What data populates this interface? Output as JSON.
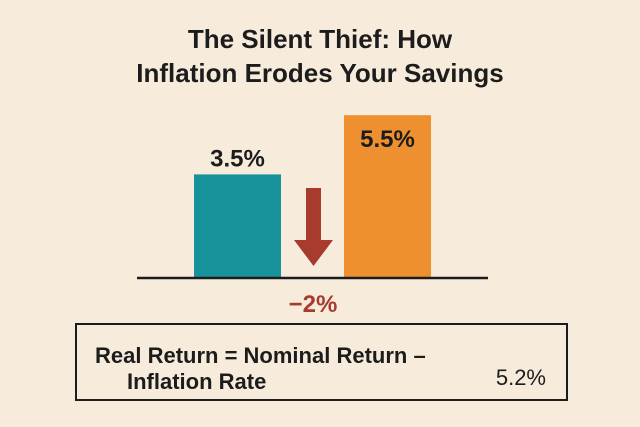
{
  "title": {
    "line1": "The Silent Thief: How",
    "line2": "Inflation Erodes Your Savings"
  },
  "chart_data": {
    "type": "bar",
    "title": "The Silent Thief: How Inflation Erodes Your Savings",
    "xlabel": "",
    "ylabel": "",
    "ylim": [
      0,
      6
    ],
    "grid": false,
    "categories": [
      "",
      ""
    ],
    "values": [
      3.5,
      5.5
    ],
    "data_labels": [
      "3.5%",
      "5.5%"
    ],
    "colors": [
      "#17919a",
      "#ef9030"
    ],
    "annotation": {
      "text": "−2%",
      "color": "#a83a2e",
      "icon": "down-arrow-icon"
    }
  },
  "formula": {
    "line1": "Real Return = Nominal Return –",
    "line2": "Inflation Rate",
    "value": "5.2%"
  }
}
